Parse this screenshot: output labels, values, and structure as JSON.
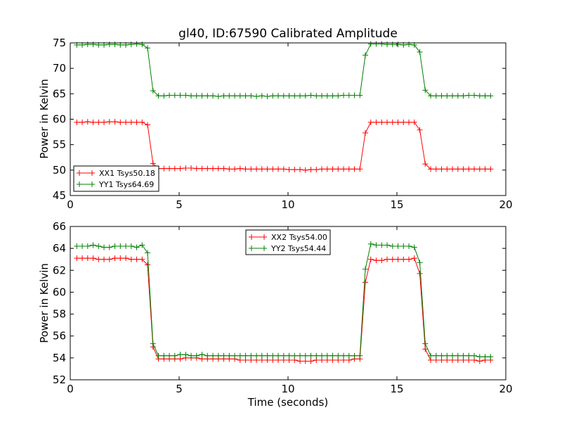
{
  "chart_data": [
    {
      "type": "line",
      "title": "gl40, ID:67590 Calibrated Amplitude",
      "xlabel": "",
      "ylabel": "Power in Kelvin",
      "xlim": [
        0,
        20
      ],
      "ylim": [
        45,
        75
      ],
      "xticks": [
        0,
        5,
        10,
        15,
        20
      ],
      "yticks": [
        45,
        50,
        55,
        60,
        65,
        70,
        75
      ],
      "grid": false,
      "legend_position": "lower-left",
      "x": [
        0.3,
        0.55,
        0.8,
        1.05,
        1.3,
        1.55,
        1.8,
        2.05,
        2.3,
        2.55,
        2.8,
        3.05,
        3.3,
        3.55,
        3.8,
        4.05,
        4.3,
        4.55,
        4.8,
        5.05,
        5.3,
        5.55,
        5.8,
        6.05,
        6.3,
        6.55,
        6.8,
        7.05,
        7.3,
        7.55,
        7.8,
        8.05,
        8.3,
        8.55,
        8.8,
        9.05,
        9.3,
        9.55,
        9.8,
        10.05,
        10.3,
        10.55,
        10.8,
        11.05,
        11.3,
        11.55,
        11.8,
        12.05,
        12.3,
        12.55,
        12.8,
        13.05,
        13.3,
        13.55,
        13.8,
        14.05,
        14.3,
        14.55,
        14.8,
        15.05,
        15.3,
        15.55,
        15.8,
        16.05,
        16.3,
        16.55,
        16.8,
        17.05,
        17.3,
        17.55,
        17.8,
        18.05,
        18.3,
        18.55,
        18.8,
        19.05,
        19.3
      ],
      "series": [
        {
          "name": "XX1 Tsys50.18",
          "color": "#ff0000",
          "values": [
            59.4,
            59.4,
            59.5,
            59.4,
            59.4,
            59.4,
            59.5,
            59.5,
            59.4,
            59.4,
            59.4,
            59.4,
            59.4,
            58.9,
            51.3,
            50.3,
            50.3,
            50.3,
            50.3,
            50.3,
            50.4,
            50.4,
            50.3,
            50.3,
            50.3,
            50.3,
            50.3,
            50.3,
            50.2,
            50.2,
            50.3,
            50.2,
            50.2,
            50.2,
            50.2,
            50.2,
            50.2,
            50.2,
            50.2,
            50.1,
            50.1,
            50.1,
            50.0,
            50.1,
            50.1,
            50.2,
            50.2,
            50.2,
            50.2,
            50.2,
            50.2,
            50.2,
            50.2,
            57.3,
            59.4,
            59.4,
            59.4,
            59.4,
            59.4,
            59.4,
            59.4,
            59.4,
            59.4,
            57.9,
            51.2,
            50.2,
            50.2,
            50.2,
            50.2,
            50.2,
            50.2,
            50.2,
            50.2,
            50.2,
            50.2,
            50.2,
            50.2
          ]
        },
        {
          "name": "YY1 Tsys64.69",
          "color": "#008000",
          "values": [
            74.6,
            74.6,
            74.7,
            74.7,
            74.6,
            74.6,
            74.7,
            74.7,
            74.6,
            74.6,
            74.7,
            74.8,
            74.7,
            74.0,
            65.6,
            64.6,
            64.6,
            64.7,
            64.7,
            64.7,
            64.7,
            64.6,
            64.6,
            64.6,
            64.6,
            64.6,
            64.5,
            64.6,
            64.6,
            64.6,
            64.6,
            64.6,
            64.6,
            64.5,
            64.6,
            64.5,
            64.6,
            64.6,
            64.6,
            64.6,
            64.6,
            64.6,
            64.6,
            64.7,
            64.6,
            64.6,
            64.6,
            64.6,
            64.6,
            64.7,
            64.7,
            64.7,
            64.7,
            72.6,
            74.8,
            74.8,
            74.8,
            74.7,
            74.7,
            74.7,
            74.6,
            74.7,
            74.6,
            73.2,
            65.7,
            64.6,
            64.6,
            64.6,
            64.6,
            64.6,
            64.6,
            64.6,
            64.7,
            64.7,
            64.6,
            64.6,
            64.6
          ]
        }
      ]
    },
    {
      "type": "line",
      "title": "",
      "xlabel": "Time (seconds)",
      "ylabel": "Power in Kelvin",
      "xlim": [
        0,
        20
      ],
      "ylim": [
        52,
        66
      ],
      "xticks": [
        0,
        5,
        10,
        15,
        20
      ],
      "yticks": [
        52,
        54,
        56,
        58,
        60,
        62,
        64,
        66
      ],
      "grid": false,
      "legend_position": "upper-center",
      "x": [
        0.3,
        0.55,
        0.8,
        1.05,
        1.3,
        1.55,
        1.8,
        2.05,
        2.3,
        2.55,
        2.8,
        3.05,
        3.3,
        3.55,
        3.8,
        4.05,
        4.3,
        4.55,
        4.8,
        5.05,
        5.3,
        5.55,
        5.8,
        6.05,
        6.3,
        6.55,
        6.8,
        7.05,
        7.3,
        7.55,
        7.8,
        8.05,
        8.3,
        8.55,
        8.8,
        9.05,
        9.3,
        9.55,
        9.8,
        10.05,
        10.3,
        10.55,
        10.8,
        11.05,
        11.3,
        11.55,
        11.8,
        12.05,
        12.3,
        12.55,
        12.8,
        13.05,
        13.3,
        13.55,
        13.8,
        14.05,
        14.3,
        14.55,
        14.8,
        15.05,
        15.3,
        15.55,
        15.8,
        16.05,
        16.3,
        16.55,
        16.8,
        17.05,
        17.3,
        17.55,
        17.8,
        18.05,
        18.3,
        18.55,
        18.8,
        19.05,
        19.3
      ],
      "series": [
        {
          "name": "XX2 Tsys54.00",
          "color": "#ff0000",
          "values": [
            63.1,
            63.1,
            63.1,
            63.1,
            63.0,
            63.0,
            63.0,
            63.1,
            63.1,
            63.1,
            63.0,
            63.0,
            63.0,
            62.5,
            55.0,
            53.9,
            53.9,
            53.9,
            53.9,
            53.9,
            54.0,
            54.0,
            54.0,
            53.9,
            53.9,
            53.9,
            53.9,
            53.9,
            53.9,
            53.9,
            53.8,
            53.8,
            53.8,
            53.8,
            53.8,
            53.8,
            53.8,
            53.8,
            53.8,
            53.8,
            53.8,
            53.7,
            53.7,
            53.7,
            53.8,
            53.8,
            53.8,
            53.8,
            53.8,
            53.8,
            53.8,
            53.9,
            53.9,
            60.9,
            63.0,
            62.9,
            62.9,
            63.0,
            63.0,
            63.0,
            63.0,
            63.0,
            63.1,
            61.7,
            54.8,
            53.8,
            53.8,
            53.8,
            53.8,
            53.8,
            53.8,
            53.8,
            53.8,
            53.8,
            53.7,
            53.8,
            53.8
          ]
        },
        {
          "name": "YY2 Tsys54.44",
          "color": "#008000",
          "values": [
            64.2,
            64.2,
            64.2,
            64.3,
            64.2,
            64.1,
            64.1,
            64.2,
            64.2,
            64.2,
            64.2,
            64.1,
            64.3,
            63.6,
            55.3,
            54.2,
            54.2,
            54.2,
            54.2,
            54.3,
            54.3,
            54.2,
            54.2,
            54.3,
            54.2,
            54.2,
            54.2,
            54.2,
            54.2,
            54.2,
            54.2,
            54.2,
            54.2,
            54.2,
            54.2,
            54.2,
            54.2,
            54.2,
            54.2,
            54.2,
            54.2,
            54.2,
            54.2,
            54.2,
            54.2,
            54.2,
            54.2,
            54.2,
            54.2,
            54.2,
            54.2,
            54.2,
            54.2,
            62.1,
            64.4,
            64.3,
            64.3,
            64.3,
            64.2,
            64.2,
            64.2,
            64.2,
            64.1,
            62.7,
            55.3,
            54.2,
            54.2,
            54.2,
            54.2,
            54.2,
            54.2,
            54.2,
            54.2,
            54.2,
            54.1,
            54.1,
            54.1
          ]
        }
      ]
    }
  ]
}
